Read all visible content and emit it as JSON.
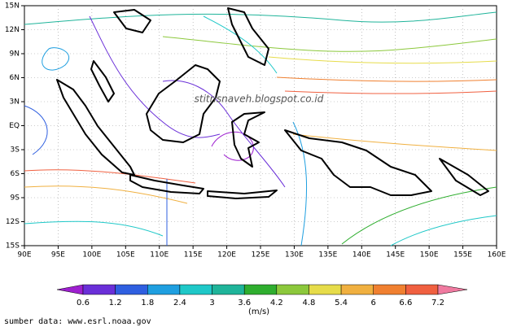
{
  "map": {
    "lon_labels": [
      "90E",
      "95E",
      "100E",
      "105E",
      "110E",
      "115E",
      "120E",
      "125E",
      "130E",
      "135E",
      "140E",
      "145E",
      "150E",
      "155E",
      "160E"
    ],
    "lat_labels": [
      "15N",
      "12N",
      "9N",
      "6N",
      "3N",
      "EQ",
      "3S",
      "6S",
      "9S",
      "12S",
      "15S"
    ],
    "watermark": "stitrisnaveh.blogspot.co.id"
  },
  "colorbar": {
    "labels": [
      0.6,
      1.2,
      1.8,
      2.4,
      3,
      3.6,
      4.2,
      4.8,
      5.4,
      6,
      6.6,
      7.2
    ],
    "colors": [
      "#9e1fd0",
      "#6a2fd8",
      "#2f5fe0",
      "#1f9fe0",
      "#1fc8c8",
      "#1fb49a",
      "#2fae2f",
      "#8cc83c",
      "#e6dc4a",
      "#f0b040",
      "#f08030",
      "#f06040",
      "#f07aa0"
    ],
    "unit": "(m/s)"
  },
  "source": "sumber data: www.esrl.noaa.gov"
}
